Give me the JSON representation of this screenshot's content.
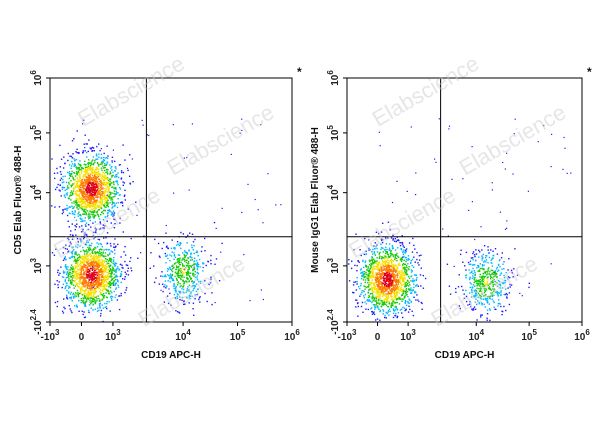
{
  "chart_data": [
    {
      "type": "scatter",
      "title": "",
      "xlabel": "CD19 APC-H",
      "ylabel": "CD5 Elab Fluor® 488-H",
      "x_scale": "biexponential",
      "y_scale": "biexponential",
      "xlim": [
        "-10^3",
        "10^6"
      ],
      "ylim": [
        "-10^2.4",
        "10^6"
      ],
      "x_ticks": [
        {
          "label": "-10",
          "exp": "3"
        },
        {
          "label": "0",
          "exp": ""
        },
        {
          "label": "10",
          "exp": "3"
        },
        {
          "label": "10",
          "exp": "4"
        },
        {
          "label": "10",
          "exp": "5"
        },
        {
          "label": "10",
          "exp": "6"
        }
      ],
      "y_ticks": [
        {
          "label": "-10",
          "exp": "2.4"
        },
        {
          "label": "10",
          "exp": "3"
        },
        {
          "label": "10",
          "exp": "4"
        },
        {
          "label": "10",
          "exp": "5"
        },
        {
          "label": "10",
          "exp": "6"
        }
      ],
      "quadrant_gate": {
        "x": 3000,
        "y": 2500
      },
      "populations": [
        {
          "x_center": 300,
          "y_center": 12000,
          "density": "high"
        },
        {
          "x_center": 300,
          "y_center": 800,
          "density": "high"
        },
        {
          "x_center": 10000,
          "y_center": 900,
          "density": "medium"
        }
      ],
      "colormap": [
        "#1c1cff",
        "#00b7ff",
        "#16c80c",
        "#f5e000",
        "#ff7a00",
        "#e0001a"
      ],
      "marker": "*",
      "watermark": "Elabscience"
    },
    {
      "type": "scatter",
      "title": "",
      "xlabel": "CD19 APC-H",
      "ylabel": "Mouse IgG1 Elab Fluor® 488-H",
      "x_scale": "biexponential",
      "y_scale": "biexponential",
      "xlim": [
        "-10^3",
        "10^6"
      ],
      "ylim": [
        "-10^2.4",
        "10^6"
      ],
      "x_ticks": [
        {
          "label": "-10",
          "exp": "3"
        },
        {
          "label": "0",
          "exp": ""
        },
        {
          "label": "10",
          "exp": "3"
        },
        {
          "label": "10",
          "exp": "4"
        },
        {
          "label": "10",
          "exp": "5"
        },
        {
          "label": "10",
          "exp": "6"
        }
      ],
      "y_ticks": [
        {
          "label": "-10",
          "exp": "2.4"
        },
        {
          "label": "10",
          "exp": "3"
        },
        {
          "label": "10",
          "exp": "4"
        },
        {
          "label": "10",
          "exp": "5"
        },
        {
          "label": "10",
          "exp": "6"
        }
      ],
      "quadrant_gate": {
        "x": 3000,
        "y": 2500
      },
      "populations": [
        {
          "x_center": 300,
          "y_center": 700,
          "density": "high"
        },
        {
          "x_center": 15000,
          "y_center": 650,
          "density": "medium"
        }
      ],
      "colormap": [
        "#1c1cff",
        "#00b7ff",
        "#16c80c",
        "#f5e000",
        "#ff7a00",
        "#e0001a"
      ],
      "marker": "*",
      "watermark": "Elabscience"
    }
  ]
}
